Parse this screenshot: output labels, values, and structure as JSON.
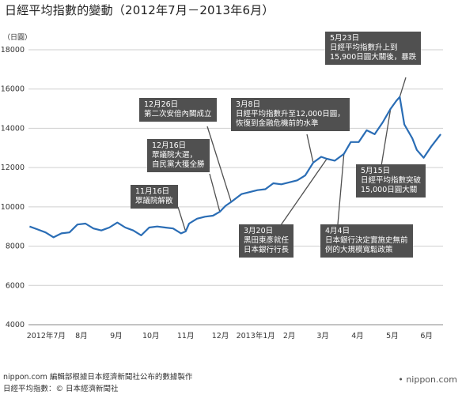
{
  "title": "日經平均指數的變動（2012年7月－2013年6月）",
  "unit_label": "（日圓）",
  "chart_data": {
    "type": "line",
    "title": "日經平均指數的變動（2012年7月－2013年6月）",
    "ylabel": "（日圓）",
    "ylim": [
      4000,
      18000
    ],
    "yticks": [
      4000,
      6000,
      8000,
      10000,
      12000,
      14000,
      16000,
      18000
    ],
    "x_tick_labels": [
      "2012年7月",
      "8月",
      "9月",
      "10月",
      "11月",
      "12月",
      "2013年1月",
      "2月",
      "3月",
      "4月",
      "5月",
      "6月"
    ],
    "grid": true,
    "series": [
      {
        "color": "#2a6db5",
        "x": [
          "2012-07-02",
          "2012-07-09",
          "2012-07-16",
          "2012-07-23",
          "2012-07-30",
          "2012-08-06",
          "2012-08-13",
          "2012-08-20",
          "2012-08-27",
          "2012-09-03",
          "2012-09-10",
          "2012-09-17",
          "2012-09-24",
          "2012-10-01",
          "2012-10-08",
          "2012-10-15",
          "2012-10-22",
          "2012-10-29",
          "2012-11-05",
          "2012-11-12",
          "2012-11-16",
          "2012-11-19",
          "2012-11-26",
          "2012-12-03",
          "2012-12-10",
          "2012-12-16",
          "2012-12-21",
          "2012-12-26",
          "2013-01-04",
          "2013-01-11",
          "2013-01-18",
          "2013-01-25",
          "2013-02-01",
          "2013-02-08",
          "2013-02-15",
          "2013-02-22",
          "2013-03-01",
          "2013-03-08",
          "2013-03-15",
          "2013-03-20",
          "2013-03-27",
          "2013-04-04",
          "2013-04-10",
          "2013-04-17",
          "2013-04-24",
          "2013-05-01",
          "2013-05-08",
          "2013-05-15",
          "2013-05-20",
          "2013-05-23",
          "2013-05-27",
          "2013-06-03",
          "2013-06-07",
          "2013-06-13",
          "2013-06-20",
          "2013-06-28"
        ],
        "values": [
          9000,
          8850,
          8700,
          8450,
          8650,
          8700,
          9100,
          9150,
          8900,
          8800,
          8950,
          9200,
          8950,
          8800,
          8550,
          8950,
          9000,
          8950,
          8900,
          8650,
          8750,
          9150,
          9400,
          9500,
          9550,
          9750,
          10050,
          10250,
          10650,
          10750,
          10850,
          10900,
          11200,
          11150,
          11250,
          11350,
          11600,
          12250,
          12550,
          12450,
          12350,
          12700,
          13300,
          13300,
          13900,
          13700,
          14300,
          15000,
          15400,
          15600,
          14200,
          13500,
          12900,
          12500,
          13100,
          13700
        ]
      }
    ],
    "annotations": [
      {
        "text": "5月23日\n日經平均指數升上到\n15,900日圓大關後，暴跌"
      },
      {
        "text": "12月26日\n第二次安倍內閣成立"
      },
      {
        "text": "3月8日\n日經平均指數升至12,000日圓，\n恢復到金融危機前的水準"
      },
      {
        "text": "12月16日\n眾議院大選，\n自民黨大獲全勝"
      },
      {
        "text": "5月15日\n日經平均指數突破\n15,000日圓大關"
      },
      {
        "text": "11月16日\n眾議院解散"
      },
      {
        "text": "3月20日\n黑田東彥就任\n日本銀行行長"
      },
      {
        "text": "4月4日\n日本銀行決定實施史無前\n例的大規模寬鬆政策"
      }
    ]
  },
  "footer": {
    "line1": "nippon.com 編輯部根據日本經濟新聞社公布的數據製作",
    "line2": "日經平均指數：© 日本經濟新聞社"
  },
  "logo": "• nippon.com"
}
